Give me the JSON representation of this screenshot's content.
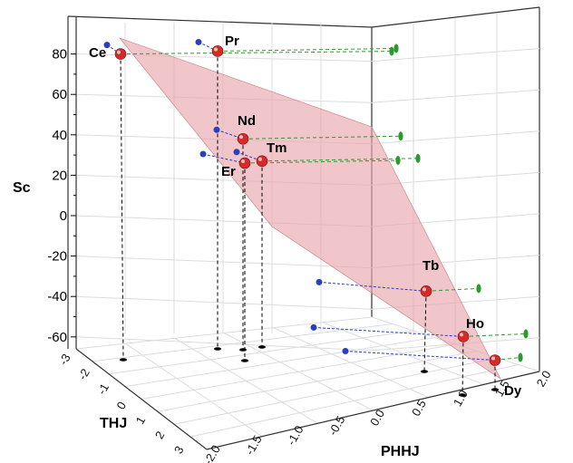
{
  "chart_data": {
    "type": "scatter",
    "zlabel": "Sc",
    "ylabel": "THJ",
    "xlabel": "PHHJ",
    "z_ticks": [
      "80",
      "60",
      "40",
      "20",
      "0",
      "-20",
      "-40",
      "-60"
    ],
    "thj_ticks": [
      "-3",
      "-2",
      "-1",
      "0",
      "1",
      "2",
      "3"
    ],
    "phhj_ticks": [
      "-2.0",
      "-1.5",
      "-1.0",
      "-0.5",
      "0.0",
      "0.5",
      "1.0",
      "1.5",
      "2.0"
    ],
    "zlim": [
      -65,
      87
    ],
    "grid": true,
    "plane": {
      "color": "#e8a8ad"
    },
    "colors": {
      "point": "#d42a2a",
      "projection_thj": "#2a3fbd",
      "projection_phhj": "#2e9a2e",
      "floor": "#000000"
    },
    "points": [
      {
        "label": "Ce",
        "sc": 80
      },
      {
        "label": "Pr",
        "sc": 85
      },
      {
        "label": "Nd",
        "sc": 38
      },
      {
        "label": "Tm",
        "sc": 27
      },
      {
        "label": "Er",
        "sc": 26
      },
      {
        "label": "Tb",
        "sc": -32
      },
      {
        "label": "Ho",
        "sc": -54
      },
      {
        "label": "Dy",
        "sc": -63
      }
    ]
  }
}
